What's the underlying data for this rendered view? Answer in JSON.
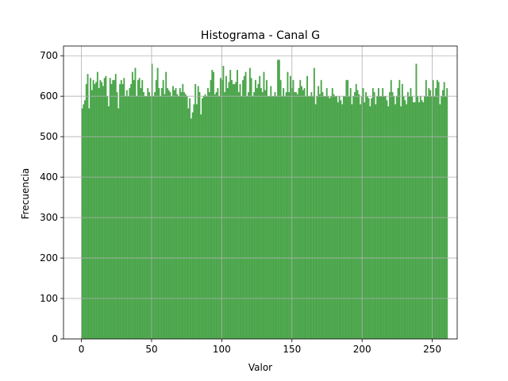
{
  "chart_data": {
    "type": "bar",
    "title": "Histograma - Canal G",
    "xlabel": "Valor",
    "ylabel": "Frecuencia",
    "xlim": [
      -12.75,
      267.75
    ],
    "ylim": [
      0,
      724
    ],
    "xticks": [
      0,
      50,
      100,
      150,
      200,
      250
    ],
    "yticks": [
      0,
      100,
      200,
      300,
      400,
      500,
      600,
      700
    ],
    "grid": true,
    "bar_color": "#4ca64c",
    "grid_color": "#b0b0b0",
    "bin_width": 0.99609375,
    "bins_start": 0,
    "values": [
      570,
      580,
      590,
      630,
      655,
      570,
      645,
      615,
      640,
      630,
      635,
      660,
      620,
      640,
      635,
      625,
      645,
      650,
      600,
      575,
      645,
      630,
      640,
      640,
      655,
      610,
      570,
      630,
      640,
      630,
      645,
      600,
      615,
      600,
      620,
      630,
      660,
      640,
      670,
      600,
      640,
      645,
      620,
      640,
      610,
      600,
      600,
      620,
      610,
      600,
      680,
      600,
      610,
      640,
      670,
      620,
      600,
      620,
      640,
      605,
      660,
      620,
      615,
      610,
      600,
      625,
      615,
      620,
      605,
      600,
      620,
      610,
      630,
      610,
      605,
      600,
      570,
      595,
      545,
      560,
      580,
      630,
      580,
      625,
      610,
      555,
      595,
      600,
      605,
      600,
      620,
      610,
      640,
      665,
      660,
      605,
      610,
      620,
      600,
      645,
      640,
      675,
      610,
      650,
      620,
      635,
      665,
      640,
      630,
      630,
      635,
      665,
      610,
      630,
      600,
      640,
      650,
      660,
      600,
      610,
      670,
      645,
      600,
      610,
      640,
      620,
      630,
      650,
      620,
      610,
      660,
      615,
      640,
      600,
      600,
      625,
      600,
      600,
      610,
      600,
      690,
      690,
      640,
      600,
      620,
      600,
      610,
      660,
      610,
      650,
      620,
      640,
      610,
      610,
      605,
      620,
      640,
      625,
      615,
      620,
      600,
      650,
      600,
      600,
      610,
      600,
      670,
      580,
      600,
      625,
      605,
      640,
      610,
      600,
      600,
      620,
      600,
      595,
      600,
      620,
      605,
      600,
      600,
      585,
      600,
      590,
      580,
      600,
      600,
      640,
      640,
      600,
      620,
      580,
      600,
      610,
      630,
      615,
      605,
      580,
      600,
      620,
      585,
      610,
      600,
      595,
      575,
      595,
      620,
      610,
      580,
      600,
      620,
      600,
      600,
      620,
      600,
      600,
      590,
      575,
      610,
      640,
      610,
      600,
      580,
      600,
      620,
      640,
      575,
      630,
      600,
      590,
      580,
      610,
      600,
      620,
      600,
      585,
      585,
      680,
      600,
      585,
      600,
      590,
      585,
      600,
      640,
      600,
      620,
      615,
      600,
      640,
      600,
      620,
      640,
      635,
      580,
      600,
      615,
      635,
      600,
      620
    ]
  }
}
